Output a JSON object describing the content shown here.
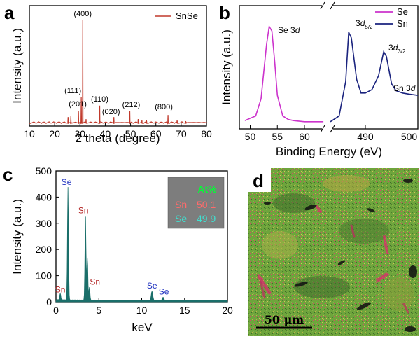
{
  "chart_data": [
    {
      "panel": "a",
      "type": "line",
      "xlabel": "2 theta (degree)",
      "ylabel": "Intensity (a.u.)",
      "xlim": [
        10,
        80
      ],
      "x_ticks": [
        10,
        20,
        30,
        40,
        50,
        60,
        70,
        80
      ],
      "legend": "SnSe",
      "legend_position": "top-right",
      "color": "#c0392b",
      "peaks": [
        {
          "x": 25.3,
          "y": 0.06,
          "label": ""
        },
        {
          "x": 26.4,
          "y": 0.07,
          "label": ""
        },
        {
          "x": 29.4,
          "y": 0.12,
          "label": "(201)"
        },
        {
          "x": 30.5,
          "y": 0.25,
          "label": "(111)"
        },
        {
          "x": 31.1,
          "y": 1.0,
          "label": "(400)"
        },
        {
          "x": 32.4,
          "y": 0.04,
          "label": ""
        },
        {
          "x": 37.8,
          "y": 0.17,
          "label": "(110)"
        },
        {
          "x": 43.4,
          "y": 0.06,
          "label": "(020)"
        },
        {
          "x": 49.7,
          "y": 0.12,
          "label": "(212)"
        },
        {
          "x": 53.0,
          "y": 0.04,
          "label": ""
        },
        {
          "x": 54.5,
          "y": 0.03,
          "label": ""
        },
        {
          "x": 56.3,
          "y": 0.03,
          "label": ""
        },
        {
          "x": 64.8,
          "y": 0.08,
          "label": "(800)"
        },
        {
          "x": 68.4,
          "y": 0.03,
          "label": ""
        },
        {
          "x": 71.8,
          "y": 0.02,
          "label": ""
        }
      ]
    },
    {
      "panel": "b",
      "type": "line",
      "xlabel": "Binding Energy (eV)",
      "ylabel": "Intensity (a.u.)",
      "broken_axis": true,
      "segments": [
        {
          "xlim": [
            48,
            64
          ],
          "x_ticks": [
            50,
            55,
            60
          ]
        },
        {
          "xlim": [
            482,
            502
          ],
          "x_ticks": [
            490,
            500
          ]
        }
      ],
      "legend_position": "top-right",
      "series": [
        {
          "name": "Se",
          "color": "#cc33cc",
          "x": [
            49,
            50,
            51,
            52,
            53,
            53.5,
            54,
            54.5,
            55,
            56,
            57,
            58,
            60,
            62,
            63.5
          ],
          "y": [
            0.06,
            0.08,
            0.1,
            0.25,
            0.72,
            0.88,
            0.84,
            0.58,
            0.28,
            0.1,
            0.07,
            0.06,
            0.05,
            0.05,
            0.05
          ]
        },
        {
          "name": "Sn",
          "color": "#1a237e",
          "x": [
            482,
            484,
            485.5,
            486.2,
            486.8,
            488,
            489,
            490,
            491.5,
            493,
            494.2,
            494.8,
            496,
            497,
            498.5,
            500,
            502
          ],
          "y": [
            0.05,
            0.1,
            0.4,
            0.83,
            0.78,
            0.42,
            0.3,
            0.3,
            0.33,
            0.45,
            0.66,
            0.62,
            0.38,
            0.32,
            0.3,
            0.29,
            0.28
          ]
        }
      ],
      "annotations": [
        "Se 3d",
        "3d5/2",
        "3d3/2",
        "Sn 3d"
      ]
    },
    {
      "panel": "c",
      "type": "bar",
      "xlabel": "keV",
      "ylabel": "Intensity (a.u.)",
      "xlim": [
        0,
        20
      ],
      "ylim": [
        0,
        500
      ],
      "x_ticks": [
        0,
        5,
        10,
        15,
        20
      ],
      "y_ticks": [
        0,
        100,
        200,
        300,
        400,
        500
      ],
      "color": "#1b6f6a",
      "peaks": [
        {
          "x": 0.5,
          "y": 25,
          "label": "Sn"
        },
        {
          "x": 1.4,
          "y": 430,
          "label": "Se"
        },
        {
          "x": 3.44,
          "y": 322,
          "label": "Sn"
        },
        {
          "x": 3.66,
          "y": 165,
          "label": ""
        },
        {
          "x": 3.9,
          "y": 50,
          "label": "Sn"
        },
        {
          "x": 11.2,
          "y": 35,
          "label": "Se"
        },
        {
          "x": 12.5,
          "y": 12,
          "label": "Se"
        }
      ],
      "inset": {
        "header": "At%",
        "rows": [
          {
            "element": "Sn",
            "value": "50.1",
            "color": "#ff6b6b"
          },
          {
            "element": "Se",
            "value": "49.9",
            "color": "#40e0d0"
          }
        ]
      }
    },
    {
      "panel": "d",
      "type": "image",
      "scale_bar": "50 μm"
    }
  ]
}
